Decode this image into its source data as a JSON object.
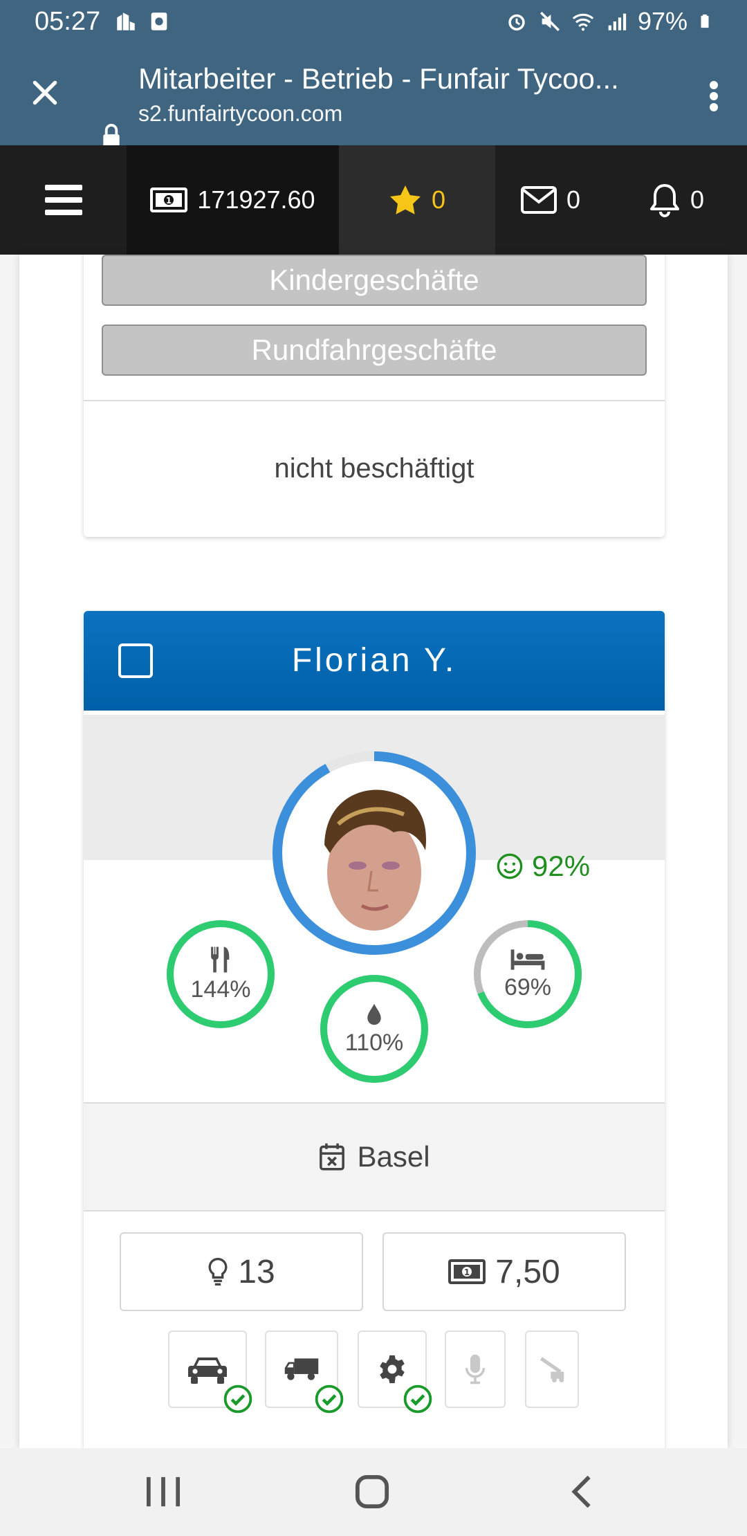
{
  "status_bar": {
    "time": "05:27",
    "battery": "97%",
    "icons_left": [
      "buildings-icon",
      "screen-icon"
    ],
    "icons_right": [
      "alarm-icon",
      "mute-icon",
      "wifi-icon",
      "signal-icon",
      "battery-icon"
    ]
  },
  "browser": {
    "title": "Mitarbeiter - Betrieb - Funfair Tycoo...",
    "url": "s2.funfairtycoon.com"
  },
  "navbar": {
    "money": "171927.60",
    "stars": "0",
    "messages": "0",
    "notifications": "0"
  },
  "previous_card": {
    "tag_1": "Kindergeschäfte",
    "tag_2": "Rundfahrgeschäfte",
    "status": "nicht beschäftigt"
  },
  "employee": {
    "name": "Florian Y.",
    "happiness": "92%",
    "happiness_level": 0.92,
    "food": {
      "label": "144%",
      "level": 1.0
    },
    "drink": {
      "label": "110%",
      "level": 1.0
    },
    "sleep": {
      "label": "69%",
      "level": 0.69
    },
    "location": "Basel",
    "skill_points": "13",
    "wage": "7,50",
    "skills": [
      {
        "icon": "car-icon",
        "active": true
      },
      {
        "icon": "truck-icon",
        "active": true
      },
      {
        "icon": "gear-icon",
        "active": true
      },
      {
        "icon": "microphone-icon",
        "active": false
      },
      {
        "icon": "crane-icon",
        "active": false
      }
    ]
  },
  "colors": {
    "header_blue": "#0b72c0",
    "stat_green": "#2ecc71",
    "happy_green": "#1f8f1f",
    "ring_blue": "#3b8fdb"
  }
}
